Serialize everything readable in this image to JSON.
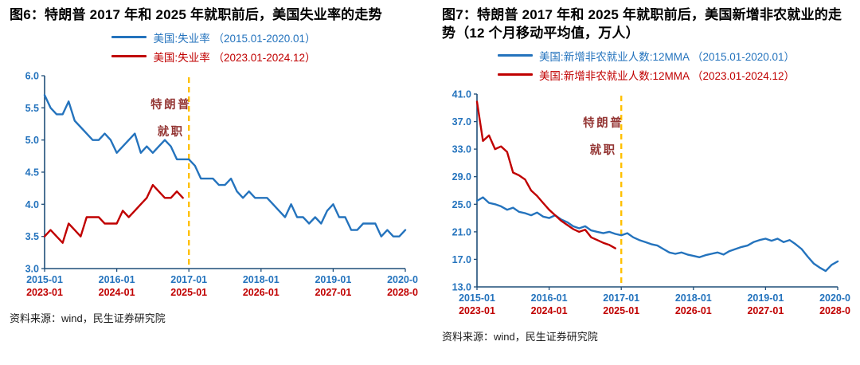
{
  "chart_data": [
    {
      "type": "line",
      "title": "图6：特朗普 2017 年和 2025 年就职前后，美国失业率的走势",
      "source": "资料来源：wind，民生证券研究院",
      "ylim": [
        3.0,
        6.0
      ],
      "yticks": [
        3.0,
        3.5,
        4.0,
        4.5,
        5.0,
        5.5,
        6.0
      ],
      "x_months_span": 60,
      "xtick_interval": 12,
      "xticklabels_primary": [
        "2015-01",
        "2016-01",
        "2017-01",
        "2018-01",
        "2019-01",
        "2020-01"
      ],
      "xticklabels_secondary": [
        "2023-01",
        "2024-01",
        "2025-01",
        "2026-01",
        "2027-01",
        "2028-01"
      ],
      "colors": {
        "axis": "#1F4E79",
        "primary_labels": "#2473BD",
        "secondary_labels": "#C00000"
      },
      "vline": {
        "x_month": 24,
        "color": "#FFC000"
      },
      "annotation": {
        "lines": [
          "特朗普",
          "就职"
        ],
        "x_month": 21,
        "color": "#943634"
      },
      "series": [
        {
          "name": "美国:失业率 （2015.01-2020.01）",
          "color": "#2473BD",
          "start_month": 0,
          "values": [
            5.7,
            5.5,
            5.4,
            5.4,
            5.6,
            5.3,
            5.2,
            5.1,
            5.0,
            5.0,
            5.1,
            5.0,
            4.8,
            4.9,
            5.0,
            5.1,
            4.8,
            4.9,
            4.8,
            4.9,
            5.0,
            4.9,
            4.7,
            4.7,
            4.7,
            4.6,
            4.4,
            4.4,
            4.4,
            4.3,
            4.3,
            4.4,
            4.2,
            4.1,
            4.2,
            4.1,
            4.1,
            4.1,
            4.0,
            3.9,
            3.8,
            4.0,
            3.8,
            3.8,
            3.7,
            3.8,
            3.7,
            3.9,
            4.0,
            3.8,
            3.8,
            3.6,
            3.6,
            3.7,
            3.7,
            3.7,
            3.5,
            3.6,
            3.5,
            3.5,
            3.6
          ]
        },
        {
          "name": "美国:失业率 （2023.01-2024.12）",
          "color": "#C00000",
          "start_month": 0,
          "values": [
            3.5,
            3.6,
            3.5,
            3.4,
            3.7,
            3.6,
            3.5,
            3.8,
            3.8,
            3.8,
            3.7,
            3.7,
            3.7,
            3.9,
            3.8,
            3.9,
            4.0,
            4.1,
            4.3,
            4.2,
            4.1,
            4.1,
            4.2,
            4.1
          ]
        }
      ]
    },
    {
      "type": "line",
      "title": "图7：特朗普 2017 年和 2025 年就职前后，美国新增非农就业的走势（12 个月移动平均值，万人）",
      "source": "资料来源：wind，民生证券研究院",
      "ylim": [
        13.0,
        41.0
      ],
      "yticks": [
        13.0,
        17.0,
        21.0,
        25.0,
        29.0,
        33.0,
        37.0,
        41.0
      ],
      "x_months_span": 60,
      "xtick_interval": 12,
      "xticklabels_primary": [
        "2015-01",
        "2016-01",
        "2017-01",
        "2018-01",
        "2019-01",
        "2020-01"
      ],
      "xticklabels_secondary": [
        "2023-01",
        "2024-01",
        "2025-01",
        "2026-01",
        "2027-01",
        "2028-01"
      ],
      "colors": {
        "axis": "#1F4E79",
        "primary_labels": "#2473BD",
        "secondary_labels": "#C00000"
      },
      "vline": {
        "x_month": 24,
        "color": "#FFC000"
      },
      "annotation": {
        "lines": [
          "特朗普",
          "就职"
        ],
        "x_month": 21,
        "color": "#943634"
      },
      "series": [
        {
          "name": "美国:新增非农就业人数:12MMA （2015.01-2020.01）",
          "color": "#2473BD",
          "start_month": 0,
          "values": [
            25.5,
            26.0,
            25.2,
            25.0,
            24.7,
            24.2,
            24.5,
            23.9,
            23.7,
            23.4,
            23.8,
            23.2,
            23.0,
            23.4,
            22.8,
            22.4,
            21.8,
            21.5,
            21.8,
            21.2,
            21.0,
            20.8,
            21.0,
            20.7,
            20.5,
            20.8,
            20.2,
            19.8,
            19.5,
            19.2,
            19.0,
            18.5,
            18.0,
            17.8,
            18.0,
            17.7,
            17.5,
            17.3,
            17.6,
            17.8,
            18.0,
            17.7,
            18.2,
            18.5,
            18.8,
            19.0,
            19.5,
            19.8,
            20.0,
            19.7,
            20.0,
            19.5,
            19.8,
            19.2,
            18.5,
            17.4,
            16.4,
            15.8,
            15.3,
            16.2,
            16.7
          ]
        },
        {
          "name": "美国:新增非农就业人数:12MMA （2023.01-2024.12）",
          "color": "#C00000",
          "start_month": 0,
          "values": [
            39.9,
            34.2,
            35.0,
            33.0,
            33.4,
            32.6,
            29.6,
            29.2,
            28.6,
            27.0,
            26.2,
            25.2,
            24.2,
            23.4,
            22.6,
            22.0,
            21.4,
            21.0,
            21.3,
            20.2,
            19.8,
            19.4,
            19.1,
            18.6
          ]
        }
      ]
    }
  ]
}
